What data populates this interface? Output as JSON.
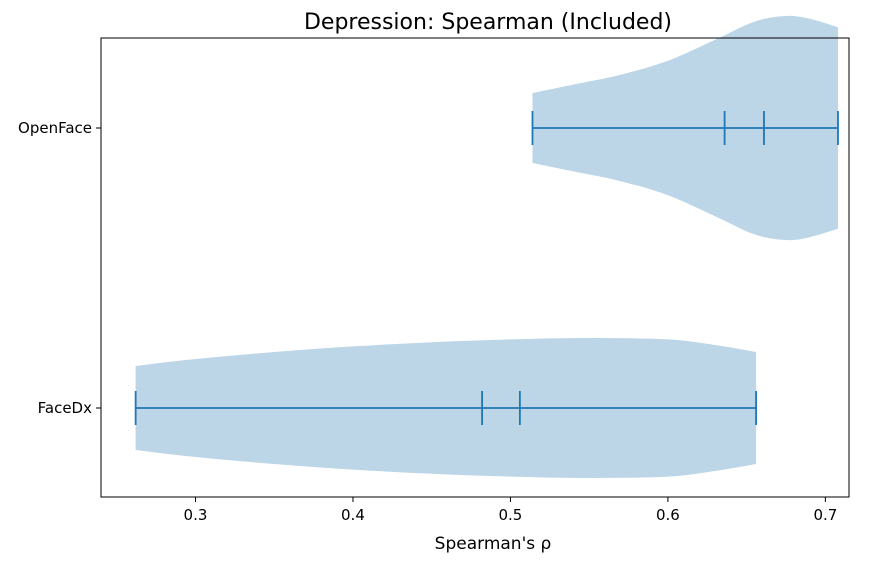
{
  "chart_data": {
    "type": "violin",
    "orientation": "horizontal",
    "title": "Depression: Spearman (Included)",
    "xlabel": "Spearman's ρ",
    "ylabel": "",
    "xlim": [
      0.24,
      0.715
    ],
    "xticks": [
      "0.3",
      "0.4",
      "0.5",
      "0.6",
      "0.7"
    ],
    "xtick_values": [
      0.3,
      0.4,
      0.5,
      0.6,
      0.7
    ],
    "categories": [
      "OpenFace",
      "FaceDx"
    ],
    "grid": false,
    "colors": {
      "fill": "#bcd6e8",
      "line": "#1f77b4"
    },
    "series": [
      {
        "category": "OpenFace",
        "min": 0.514,
        "max": 0.708,
        "mean": 0.636,
        "median": 0.661,
        "density": [
          [
            0.514,
            0.125
          ],
          [
            0.54,
            0.155
          ],
          [
            0.57,
            0.19
          ],
          [
            0.6,
            0.24
          ],
          [
            0.63,
            0.315
          ],
          [
            0.655,
            0.38
          ],
          [
            0.675,
            0.4
          ],
          [
            0.69,
            0.39
          ],
          [
            0.708,
            0.36
          ]
        ]
      },
      {
        "category": "FaceDx",
        "min": 0.262,
        "max": 0.656,
        "mean": 0.482,
        "median": 0.506,
        "density": [
          [
            0.262,
            0.15
          ],
          [
            0.3,
            0.175
          ],
          [
            0.35,
            0.2
          ],
          [
            0.4,
            0.22
          ],
          [
            0.45,
            0.235
          ],
          [
            0.5,
            0.245
          ],
          [
            0.55,
            0.25
          ],
          [
            0.6,
            0.245
          ],
          [
            0.63,
            0.225
          ],
          [
            0.656,
            0.2
          ]
        ]
      }
    ]
  }
}
